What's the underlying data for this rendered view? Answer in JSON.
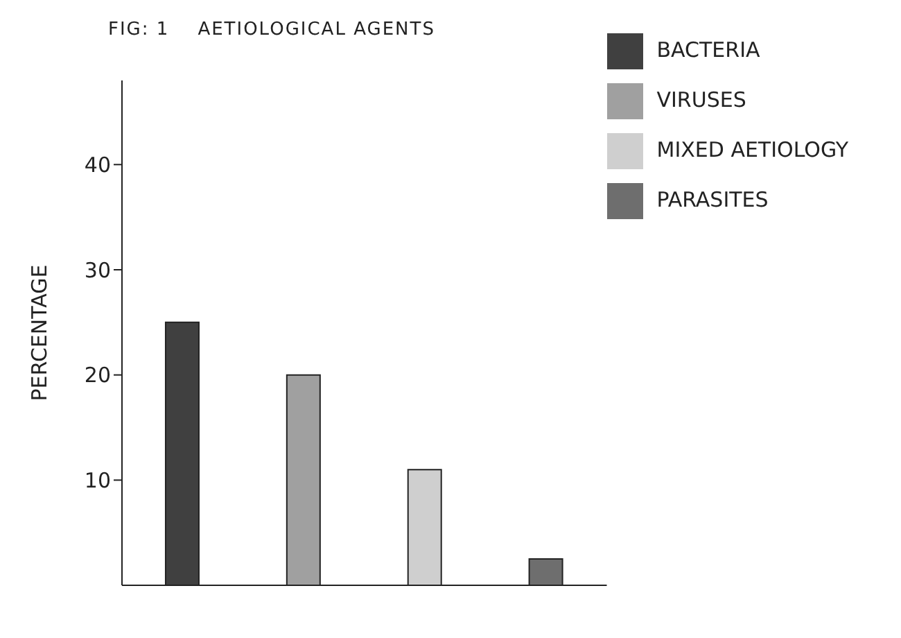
{
  "chart_data": {
    "type": "bar",
    "title": "FIG: 1    AETIOLOGICAL AGENTS",
    "ylabel": "PERCENTAGE",
    "categories": [
      null,
      null,
      null,
      null
    ],
    "stacked": true,
    "series": [
      {
        "name": "BACTERIA",
        "color": "#404040",
        "values": [
          25,
          null,
          null,
          null
        ]
      },
      {
        "name": "VIRUSES",
        "color": "#a0a0a0",
        "values": [
          null,
          20,
          null,
          null
        ]
      },
      {
        "name": "MIXED AETIOLOGY",
        "color": "#cfcfcf",
        "values": [
          null,
          null,
          11,
          null
        ]
      },
      {
        "name": "PARASITES",
        "color": "#6e6e6e",
        "values": [
          null,
          null,
          null,
          2.5
        ]
      }
    ],
    "ylim": [
      0,
      48
    ],
    "yticks": [
      10,
      20,
      30,
      40
    ],
    "legend": "top right"
  }
}
